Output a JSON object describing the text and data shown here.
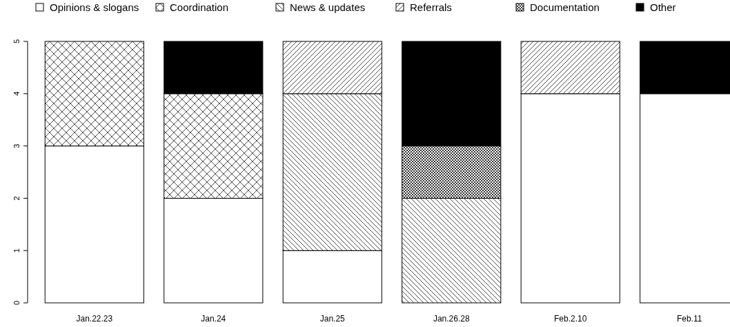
{
  "chart_data": {
    "type": "bar",
    "stacked": true,
    "categories": [
      "Jan.22.23",
      "Jan.24",
      "Jan.25",
      "Jan.26.28",
      "Feb.2.10",
      "Feb.11"
    ],
    "series": [
      {
        "name": "Opinions & slogans",
        "color": "#ffffff",
        "values": [
          3,
          2,
          1,
          0,
          4,
          4
        ]
      },
      {
        "name": "Coordination",
        "color": "#000000",
        "values": [
          2,
          2,
          0,
          0,
          0,
          0
        ]
      },
      {
        "name": "News & updates",
        "color": "#000000",
        "values": [
          0,
          0,
          3,
          2,
          0,
          0
        ]
      },
      {
        "name": "Referrals",
        "color": "#000000",
        "values": [
          0,
          0,
          1,
          0,
          1,
          0
        ]
      },
      {
        "name": "Documentation",
        "color": "#000000",
        "values": [
          0,
          0,
          0,
          1,
          0,
          0
        ]
      },
      {
        "name": "Other",
        "color": "#000000",
        "values": [
          0,
          1,
          0,
          2,
          0,
          1
        ]
      }
    ],
    "ylim": [
      0,
      5
    ],
    "yticks": [
      0,
      1,
      2,
      3,
      4,
      5
    ],
    "grid": false,
    "legend": "top"
  }
}
